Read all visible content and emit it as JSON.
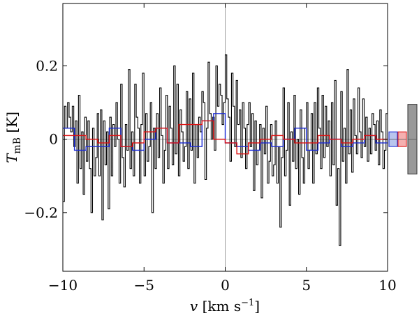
{
  "chart_data": {
    "type": "line",
    "subtype": "spectrum-histogram",
    "title": "",
    "xlabel": "v [km s⁻¹]",
    "xlabel_parts": {
      "symbol": "v",
      "unit": " [km s",
      "exp": "−1",
      "close": "]"
    },
    "ylabel": "T_mB [K]",
    "ylabel_parts": {
      "symbol": "T",
      "sub": "mB",
      "unit": " [K]"
    },
    "xlim": [
      -10,
      10
    ],
    "ylim": [
      -0.36,
      0.37
    ],
    "x_ticks": [
      -10,
      -5,
      0,
      5,
      10
    ],
    "x_tick_labels": [
      "−10",
      "−5",
      "0",
      "5",
      "10"
    ],
    "y_ticks": [
      -0.2,
      0,
      0.2
    ],
    "y_tick_labels": [
      "−0.2",
      "0",
      "0.2"
    ],
    "zero_lines": true,
    "grid": false,
    "legend": "none",
    "series": [
      {
        "color": "#000000",
        "style": "steps",
        "x_start": -10,
        "x_end": 10,
        "values": [
          -0.17,
          0.09,
          0.03,
          0.1,
          0.06,
          0.02,
          0.09,
          -0.02,
          0.05,
          -0.12,
          0.12,
          -0.08,
          0.02,
          -0.15,
          0.06,
          -0.06,
          0.05,
          -0.08,
          -0.2,
          0.03,
          -0.1,
          -0.05,
          0.07,
          -0.1,
          0.08,
          -0.22,
          0.05,
          -0.07,
          0.02,
          -0.19,
          0.06,
          -0.1,
          0.04,
          -0.02,
          0.1,
          0.0,
          -0.12,
          0.15,
          -0.05,
          -0.13,
          0.04,
          -0.03,
          0.19,
          -0.08,
          0.02,
          -0.1,
          0.15,
          0.06,
          0.03,
          -0.12,
          0.04,
          0.18,
          -0.1,
          0.07,
          -0.06,
          -0.02,
          0.1,
          -0.2,
          0.03,
          -0.08,
          0.07,
          -0.05,
          0.14,
          0.01,
          -0.12,
          -0.03,
          0.12,
          -0.08,
          0.09,
          0.03,
          -0.07,
          0.2,
          -0.04,
          0.15,
          -0.1,
          0.08,
          0.02,
          -0.06,
          -0.02,
          0.13,
          -0.08,
          0.11,
          -0.03,
          0.18,
          -0.12,
          0.04,
          -0.05,
          0.06,
          0.02,
          0.13,
          0.1,
          -0.11,
          0.03,
          0.21,
          0.07,
          0.0,
          0.06,
          -0.03,
          0.2,
          0.09,
          0.15,
          0.12,
          0.04,
          0.1,
          0.23,
          0.11,
          0.06,
          -0.06,
          0.18,
          0.09,
          -0.02,
          0.16,
          0.04,
          0.08,
          -0.05,
          0.1,
          0.03,
          -0.08,
          0.04,
          0.1,
          -0.02,
          0.07,
          -0.14,
          0.05,
          -0.07,
          -0.03,
          0.04,
          -0.16,
          0.03,
          -0.04,
          0.09,
          -0.12,
          -0.06,
          0.04,
          -0.1,
          -0.07,
          0.05,
          -0.12,
          -0.02,
          -0.24,
          -0.05,
          0.14,
          -0.1,
          -0.03,
          0.1,
          -0.18,
          0.02,
          -0.06,
          0.12,
          -0.08,
          0.0,
          -0.15,
          0.08,
          -0.05,
          -0.12,
          0.03,
          0.1,
          -0.08,
          -0.03,
          0.07,
          -0.12,
          0.1,
          -0.04,
          0.14,
          0.03,
          -0.08,
          0.12,
          -0.05,
          0.09,
          -0.02,
          0.05,
          -0.1,
          0.1,
          -0.07,
          0.16,
          -0.18,
          -0.08,
          -0.29,
          0.13,
          -0.06,
          0.03,
          -0.12,
          0.19,
          -0.04,
          0.08,
          -0.09,
          0.11,
          0.01,
          -0.04,
          0.14,
          0.02,
          -0.05,
          0.11,
          -0.02,
          0.06,
          -0.06,
          0.03,
          -0.04,
          0.07,
          0.04,
          -0.03,
          0.05,
          -0.07,
          0.08,
          0.02,
          -0.08,
          -0.03,
          0.07
        ]
      },
      {
        "color": "#1a2ad6",
        "style": "steps",
        "x_start": -10,
        "x_end": 10,
        "values": [
          0.03,
          -0.03,
          -0.02,
          -0.02,
          0.03,
          -0.02,
          -0.03,
          0.0,
          0.03,
          -0.01,
          -0.01,
          -0.02,
          0.05,
          0.07,
          -0.01,
          -0.02,
          -0.03,
          -0.01,
          -0.02,
          0.0,
          0.03,
          -0.03,
          -0.01,
          0.0,
          -0.02,
          -0.01,
          0.01,
          -0.01
        ]
      },
      {
        "color": "#dd1111",
        "style": "steps",
        "x_start": -10,
        "x_end": 10,
        "values": [
          0.01,
          0.01,
          0.0,
          -0.01,
          0.01,
          -0.02,
          -0.01,
          0.02,
          0.03,
          -0.01,
          0.04,
          0.04,
          0.05,
          0.0,
          -0.01,
          -0.04,
          -0.01,
          0.0,
          0.01,
          0.0,
          -0.01,
          -0.01,
          0.01,
          0.0,
          -0.01,
          0.0,
          0.01,
          0.0
        ]
      }
    ],
    "noise_bars": [
      {
        "color": "#1a2ad6",
        "fill": "#b9c5ee",
        "low": -0.02,
        "high": 0.02
      },
      {
        "color": "#dd1111",
        "fill": "#f5b0b0",
        "low": -0.02,
        "high": 0.02
      },
      {
        "color": "#333333",
        "fill": "#999999",
        "low": -0.095,
        "high": 0.095
      }
    ]
  }
}
